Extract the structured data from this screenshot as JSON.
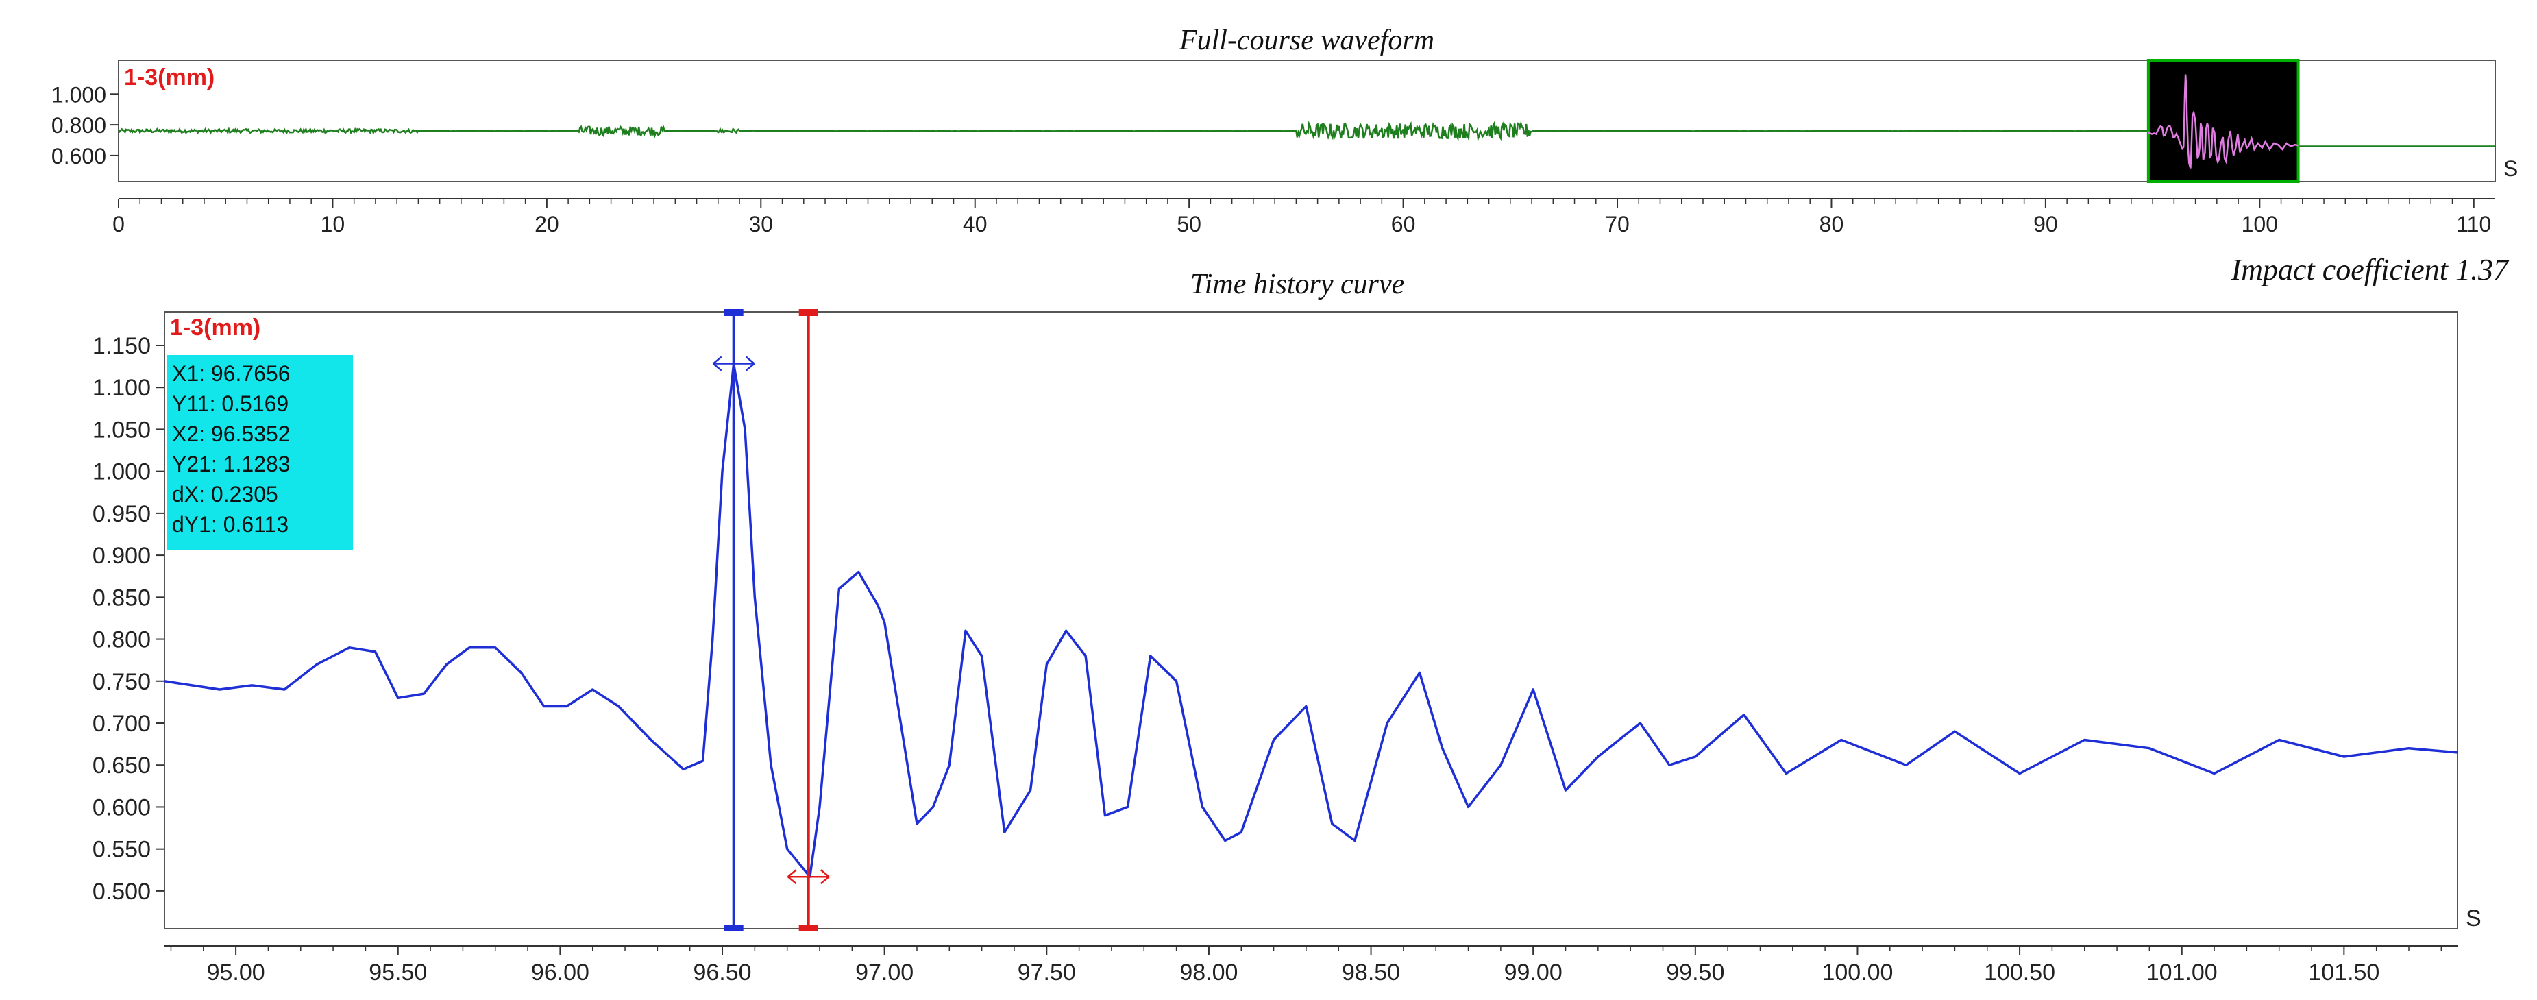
{
  "colors": {
    "overview_line": "#1f7f1f",
    "detail_line": "#1f2fd6",
    "zoom_window_bg": "#000000",
    "zoom_window_border": "#00b000",
    "zoom_window_line": "#e07de0",
    "cursor1": "#1f2fd6",
    "cursor2": "#e11b1b",
    "channel_label": "#e11b1b",
    "unit_label": "#1f2fd6",
    "readout_bg": "#12e6ea"
  },
  "chart_data": [
    {
      "type": "line",
      "title": "Full-course waveform",
      "channel_label": "1-3(mm)",
      "xunit": "S",
      "x_ticks": [
        0,
        10,
        20,
        30,
        40,
        50,
        60,
        70,
        80,
        90,
        100,
        110
      ],
      "y_ticks": [
        1.0,
        0.8,
        0.6
      ],
      "y_tick_labels": [
        "1.000",
        "0.800",
        "0.600"
      ],
      "xlim": [
        0,
        111
      ],
      "ylim": [
        0.43,
        1.22
      ],
      "baseline_value": 0.76,
      "noise_segments": [
        [
          0,
          14,
          0.012
        ],
        [
          21.5,
          25.5,
          0.03
        ],
        [
          28,
          29,
          0.015
        ],
        [
          55,
          66,
          0.05
        ]
      ],
      "zoom_window": {
        "x_start": 94.8,
        "x_end": 101.8
      },
      "after_zoom_value": 0.66,
      "annotation": "Impact coefficient 1.37"
    },
    {
      "type": "line",
      "title": "Time history curve",
      "channel_label": "1-3(mm)",
      "xunit": "S",
      "x_ticks": [
        95.0,
        95.5,
        96.0,
        96.5,
        97.0,
        97.5,
        98.0,
        98.5,
        99.0,
        99.5,
        100.0,
        100.5,
        101.0,
        101.5
      ],
      "x_tick_labels": [
        "95.00",
        "95.50",
        "96.00",
        "96.50",
        "97.00",
        "97.50",
        "98.00",
        "98.50",
        "99.00",
        "99.50",
        "100.00",
        "100.50",
        "101.00",
        "101.50"
      ],
      "y_ticks": [
        1.15,
        1.1,
        1.05,
        1.0,
        0.95,
        0.9,
        0.85,
        0.8,
        0.75,
        0.7,
        0.65,
        0.6,
        0.55,
        0.5
      ],
      "y_tick_labels": [
        "1.150",
        "1.100",
        "1.050",
        "1.000",
        "0.950",
        "0.900",
        "0.850",
        "0.800",
        "0.750",
        "0.700",
        "0.650",
        "0.600",
        "0.550",
        "0.500"
      ],
      "xlim": [
        94.78,
        101.85
      ],
      "ylim": [
        0.455,
        1.19
      ],
      "series": [
        {
          "x": [
            94.78,
            94.95,
            95.05,
            95.15,
            95.25,
            95.35,
            95.43,
            95.5,
            95.58,
            95.65,
            95.72,
            95.8,
            95.88,
            95.95,
            96.02,
            96.1,
            96.18,
            96.28,
            96.38,
            96.44,
            96.47,
            96.5,
            96.535,
            96.57,
            96.6,
            96.65,
            96.7,
            96.77,
            96.8,
            96.86,
            96.92,
            96.98,
            97.0,
            97.1,
            97.15,
            97.2,
            97.25,
            97.3,
            97.37,
            97.45,
            97.5,
            97.56,
            97.62,
            97.68,
            97.75,
            97.82,
            97.9,
            97.98,
            98.05,
            98.1,
            98.2,
            98.3,
            98.38,
            98.45,
            98.55,
            98.65,
            98.72,
            98.8,
            98.9,
            99.0,
            99.1,
            99.2,
            99.33,
            99.42,
            99.5,
            99.65,
            99.78,
            99.95,
            100.15,
            100.3,
            100.5,
            100.7,
            100.9,
            101.1,
            101.3,
            101.5,
            101.7,
            101.85
          ],
          "y": [
            0.75,
            0.74,
            0.745,
            0.74,
            0.77,
            0.79,
            0.785,
            0.73,
            0.735,
            0.77,
            0.79,
            0.79,
            0.76,
            0.72,
            0.72,
            0.74,
            0.72,
            0.68,
            0.645,
            0.655,
            0.8,
            1.0,
            1.128,
            1.05,
            0.85,
            0.65,
            0.55,
            0.517,
            0.6,
            0.86,
            0.88,
            0.84,
            0.82,
            0.58,
            0.6,
            0.65,
            0.81,
            0.78,
            0.57,
            0.62,
            0.77,
            0.81,
            0.78,
            0.59,
            0.6,
            0.78,
            0.75,
            0.6,
            0.56,
            0.57,
            0.68,
            0.72,
            0.58,
            0.56,
            0.7,
            0.76,
            0.67,
            0.6,
            0.65,
            0.74,
            0.62,
            0.66,
            0.7,
            0.65,
            0.66,
            0.71,
            0.64,
            0.68,
            0.65,
            0.69,
            0.64,
            0.68,
            0.67,
            0.64,
            0.68,
            0.66,
            0.67,
            0.665
          ]
        }
      ],
      "cursors": [
        {
          "label": "X1",
          "x": 96.7656,
          "y": 0.5169
        },
        {
          "label": "X2",
          "x": 96.5352,
          "y": 1.1283
        }
      ],
      "readout": [
        "X1: 96.7656",
        "Y11: 0.5169",
        "X2: 96.5352",
        "Y21: 1.1283",
        "dX: 0.2305",
        "dY1: 0.6113"
      ]
    }
  ]
}
